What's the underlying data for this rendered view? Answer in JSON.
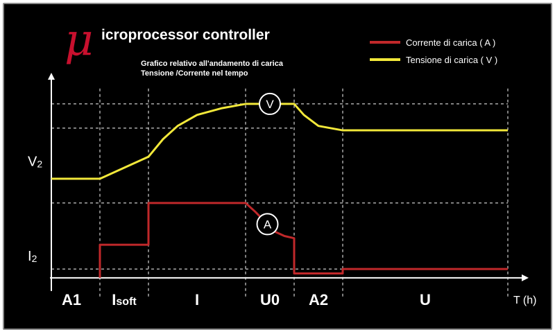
{
  "colors": {
    "background": "#000000",
    "current": "#c0282a",
    "voltage": "#f2e83a",
    "logo": "#c8102e",
    "text": "#ffffff",
    "grid": "#ffffff"
  },
  "header": {
    "logo_glyph": "μ",
    "title": "icroprocessor controller",
    "subtitle_line1": "Grafico relativo all'andamento di carica",
    "subtitle_line2": "Tensione /Corrente nel tempo"
  },
  "chart_data": {
    "type": "line",
    "title": "",
    "xlabel": "T (h)",
    "ylabel": "",
    "grid": "dashed",
    "legend": {
      "placement": "top-right",
      "entries": [
        {
          "label": "Corrente di carica ( A )",
          "color": "#c0282a"
        },
        {
          "label": "Tensione di carica ( V )",
          "color": "#f2e83a"
        }
      ]
    },
    "y_tick_labels": [
      {
        "main": "V",
        "sub": "2",
        "value": 5.3
      },
      {
        "main": "I",
        "sub": "2",
        "value": 1.0
      }
    ],
    "phases": [
      {
        "main": "A1",
        "sub": "",
        "start": 0.0,
        "end": 1.0
      },
      {
        "main": "I",
        "sub": "soft",
        "start": 1.0,
        "end": 2.0
      },
      {
        "main": "I",
        "sub": "",
        "start": 2.0,
        "end": 4.0
      },
      {
        "main": "U0",
        "sub": "",
        "start": 4.0,
        "end": 5.0
      },
      {
        "main": "A2",
        "sub": "",
        "start": 5.0,
        "end": 6.0
      },
      {
        "main": "U",
        "sub": "",
        "start": 6.0,
        "end": 9.4
      }
    ],
    "series": [
      {
        "name": "Corrente di carica ( A )",
        "color": "#c0282a",
        "marker_label": "A",
        "marker_at": 4.45,
        "points": [
          [
            1.0,
            0.0
          ],
          [
            1.0,
            1.5
          ],
          [
            2.0,
            1.5
          ],
          [
            2.0,
            3.4
          ],
          [
            4.0,
            3.4
          ],
          [
            4.2,
            3.0
          ],
          [
            4.4,
            2.55
          ],
          [
            4.6,
            2.1
          ],
          [
            4.8,
            1.9
          ],
          [
            5.0,
            1.8
          ],
          [
            5.0,
            0.2
          ],
          [
            6.0,
            0.2
          ],
          [
            6.0,
            0.4
          ],
          [
            9.4,
            0.4
          ]
        ]
      },
      {
        "name": "Tensione di carica ( V )",
        "color": "#f2e83a",
        "marker_label": "V",
        "marker_at": 4.5,
        "points": [
          [
            0.0,
            4.5
          ],
          [
            1.0,
            4.5
          ],
          [
            1.5,
            5.0
          ],
          [
            2.0,
            5.5
          ],
          [
            2.3,
            6.3
          ],
          [
            2.6,
            6.9
          ],
          [
            3.0,
            7.4
          ],
          [
            3.5,
            7.7
          ],
          [
            4.0,
            7.9
          ],
          [
            5.0,
            7.9
          ],
          [
            5.2,
            7.4
          ],
          [
            5.5,
            6.9
          ],
          [
            6.0,
            6.7
          ],
          [
            9.4,
            6.7
          ]
        ]
      }
    ],
    "xlim": [
      -0.1,
      9.8
    ],
    "ylim": [
      -0.1,
      9.0
    ],
    "h_gridlines": [
      {
        "y": 7.9,
        "x_start": 0.0,
        "x_end": 9.4
      },
      {
        "y": 6.8,
        "x_start": 0.0,
        "x_end": 5.0
      },
      {
        "y": 3.4,
        "x_start": 0.0,
        "x_end": 9.4
      },
      {
        "y": 0.4,
        "x_start": 0.0,
        "x_end": 9.4
      }
    ]
  }
}
